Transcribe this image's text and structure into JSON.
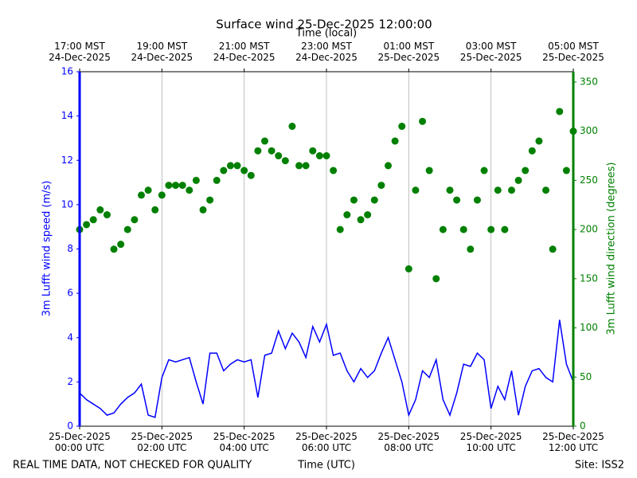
{
  "chart_data": {
    "type": "line",
    "title": "Surface wind 25-Dec-2025 12:00:00",
    "x2label": "Time (local)",
    "xlabel": "Time (UTC)",
    "ylabel": "3m Lufft wind speed (m/s)",
    "y2label": "3m Lufft wind direction (degrees)",
    "footer_left": "REAL TIME DATA, NOT CHECKED FOR QUALITY",
    "footer_right": "Site: ISS2",
    "grid": "x",
    "xlim": [
      "2025-12-25T00:00",
      "2025-12-25T12:00"
    ],
    "xticks": [
      {
        "value": "2025-12-25T00:00",
        "label": "25-Dec-2025\n00:00 UTC"
      },
      {
        "value": "2025-12-25T02:00",
        "label": "25-Dec-2025\n02:00 UTC"
      },
      {
        "value": "2025-12-25T04:00",
        "label": "25-Dec-2025\n04:00 UTC"
      },
      {
        "value": "2025-12-25T06:00",
        "label": "25-Dec-2025\n06:00 UTC"
      },
      {
        "value": "2025-12-25T08:00",
        "label": "25-Dec-2025\n08:00 UTC"
      },
      {
        "value": "2025-12-25T10:00",
        "label": "25-Dec-2025\n10:00 UTC"
      },
      {
        "value": "2025-12-25T12:00",
        "label": "25-Dec-2025\n12:00 UTC"
      }
    ],
    "x2ticks": [
      {
        "value": "2025-12-25T00:00",
        "label": "17:00 MST\n24-Dec-2025"
      },
      {
        "value": "2025-12-25T02:00",
        "label": "19:00 MST\n24-Dec-2025"
      },
      {
        "value": "2025-12-25T04:00",
        "label": "21:00 MST\n24-Dec-2025"
      },
      {
        "value": "2025-12-25T06:00",
        "label": "23:00 MST\n24-Dec-2025"
      },
      {
        "value": "2025-12-25T08:00",
        "label": "01:00 MST\n25-Dec-2025"
      },
      {
        "value": "2025-12-25T10:00",
        "label": "03:00 MST\n25-Dec-2025"
      },
      {
        "value": "2025-12-25T12:00",
        "label": "05:00 MST\n25-Dec-2025"
      }
    ],
    "ylim": [
      0,
      16
    ],
    "yticks": [
      0,
      2,
      4,
      6,
      8,
      10,
      12,
      14,
      16
    ],
    "y2lim": [
      0,
      360.5
    ],
    "y2ticks": [
      0,
      50,
      100,
      150,
      200,
      250,
      300,
      350
    ],
    "x": [
      "2025-12-25T00:00",
      "2025-12-25T00:10",
      "2025-12-25T00:20",
      "2025-12-25T00:30",
      "2025-12-25T00:40",
      "2025-12-25T00:50",
      "2025-12-25T01:00",
      "2025-12-25T01:10",
      "2025-12-25T01:20",
      "2025-12-25T01:30",
      "2025-12-25T01:40",
      "2025-12-25T01:50",
      "2025-12-25T02:00",
      "2025-12-25T02:10",
      "2025-12-25T02:20",
      "2025-12-25T02:30",
      "2025-12-25T02:40",
      "2025-12-25T02:50",
      "2025-12-25T03:00",
      "2025-12-25T03:10",
      "2025-12-25T03:20",
      "2025-12-25T03:30",
      "2025-12-25T03:40",
      "2025-12-25T03:50",
      "2025-12-25T04:00",
      "2025-12-25T04:10",
      "2025-12-25T04:20",
      "2025-12-25T04:30",
      "2025-12-25T04:40",
      "2025-12-25T04:50",
      "2025-12-25T05:00",
      "2025-12-25T05:10",
      "2025-12-25T05:20",
      "2025-12-25T05:30",
      "2025-12-25T05:40",
      "2025-12-25T05:50",
      "2025-12-25T06:00",
      "2025-12-25T06:10",
      "2025-12-25T06:20",
      "2025-12-25T06:30",
      "2025-12-25T06:40",
      "2025-12-25T06:50",
      "2025-12-25T07:00",
      "2025-12-25T07:10",
      "2025-12-25T07:20",
      "2025-12-25T07:30",
      "2025-12-25T07:40",
      "2025-12-25T07:50",
      "2025-12-25T08:00",
      "2025-12-25T08:10",
      "2025-12-25T08:20",
      "2025-12-25T08:30",
      "2025-12-25T08:40",
      "2025-12-25T08:50",
      "2025-12-25T09:00",
      "2025-12-25T09:10",
      "2025-12-25T09:20",
      "2025-12-25T09:30",
      "2025-12-25T09:40",
      "2025-12-25T09:50",
      "2025-12-25T10:00",
      "2025-12-25T10:10",
      "2025-12-25T10:20",
      "2025-12-25T10:30",
      "2025-12-25T10:40",
      "2025-12-25T10:50",
      "2025-12-25T11:00",
      "2025-12-25T11:10",
      "2025-12-25T11:20",
      "2025-12-25T11:30",
      "2025-12-25T11:40",
      "2025-12-25T11:50",
      "2025-12-25T12:00"
    ],
    "series": [
      {
        "name": "3m Lufft wind speed",
        "type": "line",
        "color": "#0000ff",
        "axis": "y",
        "values": [
          1.5,
          1.2,
          1.0,
          0.8,
          0.5,
          0.6,
          1.0,
          1.3,
          1.5,
          1.9,
          0.5,
          0.4,
          2.2,
          3.0,
          2.9,
          3.0,
          3.1,
          2.0,
          1.0,
          3.3,
          3.3,
          2.5,
          2.8,
          3.0,
          2.9,
          3.0,
          1.3,
          3.2,
          3.3,
          4.3,
          3.5,
          4.2,
          3.8,
          3.1,
          4.5,
          3.8,
          4.6,
          3.2,
          3.3,
          2.5,
          2.0,
          2.6,
          2.2,
          2.5,
          3.3,
          4.0,
          3.0,
          2.0,
          0.5,
          1.2,
          2.5,
          2.2,
          3.0,
          1.2,
          0.5,
          1.5,
          2.8,
          2.7,
          3.3,
          3.0,
          0.8,
          1.8,
          1.2,
          2.5,
          0.5,
          1.8,
          2.5,
          2.6,
          2.2,
          2.0,
          4.8,
          2.8,
          2.0
        ]
      },
      {
        "name": "3m Lufft wind direction",
        "type": "scatter",
        "color": "#008000",
        "axis": "y2",
        "values": [
          200,
          205,
          210,
          220,
          215,
          180,
          185,
          200,
          210,
          235,
          240,
          220,
          235,
          245,
          245,
          245,
          240,
          250,
          220,
          230,
          250,
          260,
          265,
          265,
          260,
          255,
          280,
          290,
          280,
          275,
          270,
          305,
          265,
          265,
          280,
          275,
          275,
          260,
          200,
          215,
          230,
          210,
          215,
          230,
          245,
          265,
          290,
          305,
          160,
          240,
          310,
          260,
          150,
          200,
          240,
          230,
          200,
          180,
          230,
          260,
          200,
          240,
          200,
          240,
          250,
          260,
          280,
          290,
          240,
          180,
          320,
          260,
          300
        ]
      }
    ]
  }
}
